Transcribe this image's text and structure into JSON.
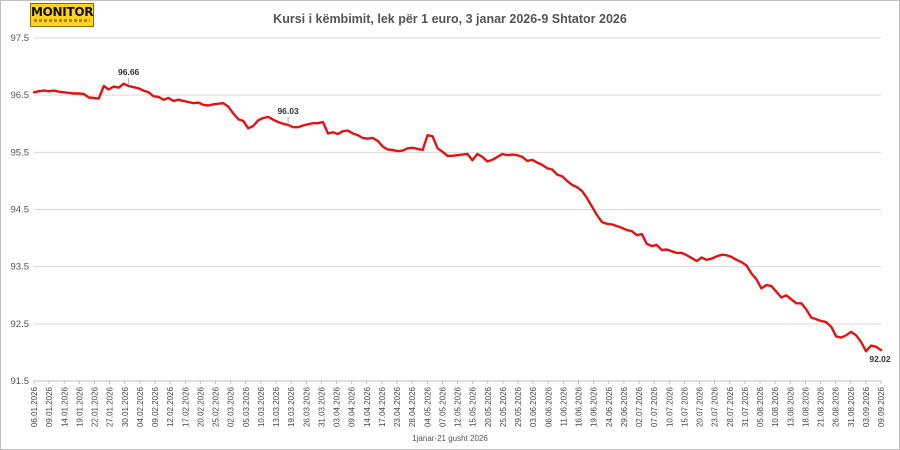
{
  "logo": {
    "text": "MONITOR"
  },
  "chart_data": {
    "type": "line",
    "title": "Kursi i këmbimit, lek për 1 euro, 3 janar 2026-9 Shtator 2026",
    "xlabel": "1janar-21 gusht 2026",
    "ylabel": "",
    "ylim": [
      91.5,
      97.5
    ],
    "yticks": [
      "97.5",
      "96.5",
      "95.5",
      "94.5",
      "93.5",
      "92.5",
      "91.5"
    ],
    "grid": "horizontal",
    "legend": "none",
    "line_color": "#e31313",
    "x_tick_labels": [
      "06.01.2026",
      "09.01.2026",
      "14.01.2026",
      "19.01.2026",
      "22.01.2026",
      "27.01.2026",
      "30.01.2026",
      "04.02.2026",
      "09.02.2026",
      "12.02.2026",
      "17.02.2026",
      "20.02.2026",
      "25.02.2026",
      "02.03.2026",
      "05.03.2026",
      "10.03.2026",
      "13.03.2026",
      "19.03.2026",
      "26.03.2026",
      "31.03.2026",
      "03.04.2026",
      "09.04.2026",
      "14.04.2026",
      "17.04.2026",
      "23.04.2026",
      "28.04.2026",
      "04.05.2026",
      "07.05.2026",
      "12.05.2026",
      "15.05.2026",
      "20.05.2026",
      "25.05.2026",
      "29.05.2026",
      "03.06.2026",
      "06.06.2026",
      "11.06.2026",
      "16.06.2026",
      "19.06.2026",
      "24.06.2026",
      "29.06.2026",
      "02.07.2026",
      "07.07.2026",
      "10.07.2026",
      "15.07.2026",
      "20.07.2026",
      "23.07.2026",
      "28.07.2026",
      "31.07.2026",
      "05.08.2026",
      "10.08.2026",
      "13.08.2026",
      "18.08.2026",
      "21.08.2026",
      "26.08.2026",
      "31.08.2026",
      "03.09.2026",
      "09.09.2026"
    ],
    "annotations": [
      {
        "label": "96.66",
        "index": 19
      },
      {
        "label": "96.03",
        "index": 51
      },
      {
        "label": "92.02",
        "index": 170
      }
    ],
    "values": [
      96.55,
      96.57,
      96.58,
      96.57,
      96.58,
      96.56,
      96.55,
      96.54,
      96.53,
      96.53,
      96.52,
      96.46,
      96.45,
      96.44,
      96.66,
      96.6,
      96.65,
      96.63,
      96.7,
      96.66,
      96.64,
      96.62,
      96.58,
      96.55,
      96.48,
      96.47,
      96.42,
      96.45,
      96.4,
      96.42,
      96.4,
      96.38,
      96.36,
      96.37,
      96.33,
      96.32,
      96.34,
      96.35,
      96.36,
      96.3,
      96.18,
      96.08,
      96.05,
      95.92,
      95.96,
      96.06,
      96.1,
      96.12,
      96.07,
      96.03,
      96.0,
      95.98,
      95.94,
      95.94,
      95.97,
      95.99,
      96.01,
      96.01,
      96.03,
      95.83,
      95.85,
      95.82,
      95.87,
      95.88,
      95.83,
      95.8,
      95.75,
      95.74,
      95.75,
      95.7,
      95.6,
      95.55,
      95.54,
      95.52,
      95.53,
      95.57,
      95.58,
      95.56,
      95.54,
      95.8,
      95.78,
      95.57,
      95.51,
      95.44,
      95.44,
      95.45,
      95.46,
      95.47,
      95.36,
      95.47,
      95.42,
      95.34,
      95.37,
      95.42,
      95.47,
      95.45,
      95.46,
      95.45,
      95.42,
      95.35,
      95.37,
      95.32,
      95.28,
      95.22,
      95.2,
      95.11,
      95.08,
      95.0,
      94.93,
      94.89,
      94.82,
      94.7,
      94.55,
      94.4,
      94.28,
      94.25,
      94.24,
      94.21,
      94.18,
      94.14,
      94.12,
      94.05,
      94.07,
      93.9,
      93.86,
      93.88,
      93.79,
      93.8,
      93.77,
      93.74,
      93.74,
      93.7,
      93.65,
      93.6,
      93.66,
      93.62,
      93.64,
      93.68,
      93.71,
      93.7,
      93.67,
      93.62,
      93.58,
      93.52,
      93.38,
      93.28,
      93.12,
      93.18,
      93.16,
      93.06,
      92.96,
      93.0,
      92.93,
      92.86,
      92.86,
      92.75,
      92.61,
      92.58,
      92.55,
      92.53,
      92.45,
      92.28,
      92.26,
      92.3,
      92.36,
      92.3,
      92.18,
      92.02,
      92.12,
      92.1,
      92.04
    ]
  }
}
